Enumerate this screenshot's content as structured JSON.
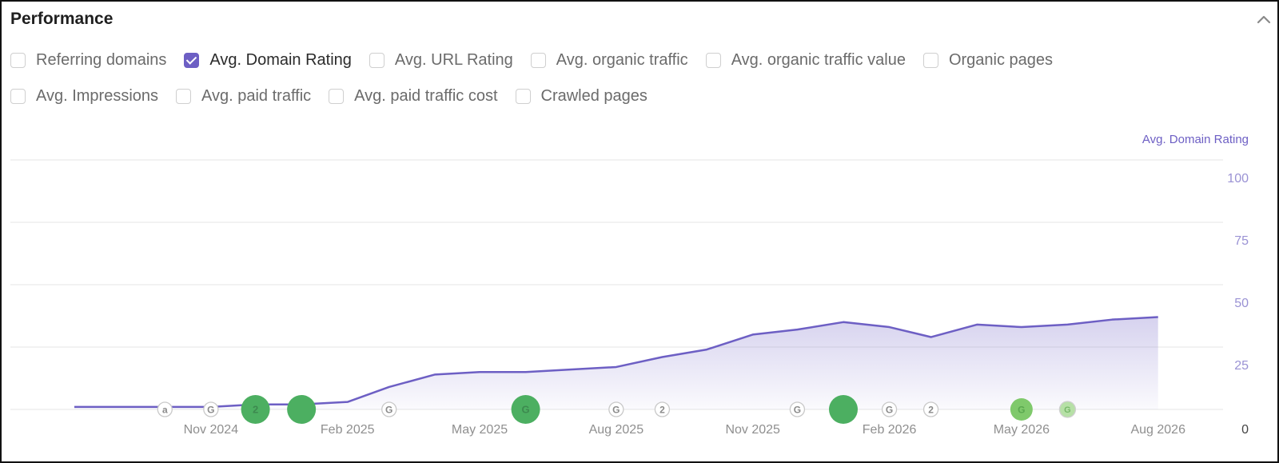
{
  "header": {
    "title": "Performance"
  },
  "metrics": [
    {
      "label": "Referring domains",
      "checked": false
    },
    {
      "label": "Avg. Domain Rating",
      "checked": true
    },
    {
      "label": "Avg. URL Rating",
      "checked": false
    },
    {
      "label": "Avg. organic traffic",
      "checked": false
    },
    {
      "label": "Avg. organic traffic value",
      "checked": false
    },
    {
      "label": "Organic pages",
      "checked": false
    },
    {
      "label": "Avg. Impressions",
      "checked": false
    },
    {
      "label": "Avg. paid traffic",
      "checked": false
    },
    {
      "label": "Avg. paid traffic cost",
      "checked": false
    },
    {
      "label": "Crawled pages",
      "checked": false
    }
  ],
  "colors": {
    "accent": "#6d5fc4",
    "grid": "#e6e6e6",
    "event_green": "#4caf61",
    "event_green_light": "#7fc96b",
    "marker_gray": "#9a9a9a"
  },
  "chart_data": {
    "type": "area",
    "ylabel": "Avg. Domain Rating",
    "ylim": [
      0,
      100
    ],
    "yticks": [
      0,
      25,
      50,
      75,
      100
    ],
    "xlim": [
      "2024-08-01",
      "2026-08-20"
    ],
    "xticks": [
      {
        "date": "2024-11-01",
        "label": "Nov 2024"
      },
      {
        "date": "2025-02-01",
        "label": "Feb 2025"
      },
      {
        "date": "2025-05-01",
        "label": "May 2025"
      },
      {
        "date": "2025-08-01",
        "label": "Aug 2025"
      },
      {
        "date": "2025-11-01",
        "label": "Nov 2025"
      },
      {
        "date": "2026-02-01",
        "label": "Feb 2026"
      },
      {
        "date": "2026-05-01",
        "label": "May 2026"
      },
      {
        "date": "2026-08-01",
        "label": "Aug 2026"
      }
    ],
    "series": [
      {
        "name": "Avg. Domain Rating",
        "points": [
          {
            "x": "2024-08-01",
            "y": 1
          },
          {
            "x": "2024-09-01",
            "y": 1
          },
          {
            "x": "2024-10-01",
            "y": 1
          },
          {
            "x": "2024-11-01",
            "y": 1
          },
          {
            "x": "2024-12-01",
            "y": 2
          },
          {
            "x": "2025-01-01",
            "y": 2
          },
          {
            "x": "2025-02-01",
            "y": 3
          },
          {
            "x": "2025-03-01",
            "y": 9
          },
          {
            "x": "2025-04-01",
            "y": 14
          },
          {
            "x": "2025-05-01",
            "y": 15
          },
          {
            "x": "2025-06-01",
            "y": 15
          },
          {
            "x": "2025-07-01",
            "y": 16
          },
          {
            "x": "2025-08-01",
            "y": 17
          },
          {
            "x": "2025-09-01",
            "y": 21
          },
          {
            "x": "2025-10-01",
            "y": 24
          },
          {
            "x": "2025-11-01",
            "y": 30
          },
          {
            "x": "2025-12-01",
            "y": 32
          },
          {
            "x": "2026-01-01",
            "y": 35
          },
          {
            "x": "2026-02-01",
            "y": 33
          },
          {
            "x": "2026-03-01",
            "y": 29
          },
          {
            "x": "2026-04-01",
            "y": 34
          },
          {
            "x": "2026-05-01",
            "y": 33
          },
          {
            "x": "2026-06-01",
            "y": 34
          },
          {
            "x": "2026-07-01",
            "y": 36
          },
          {
            "x": "2026-08-01",
            "y": 37
          }
        ]
      }
    ],
    "event_markers": [
      {
        "date": "2024-10-01",
        "kind": "letter",
        "text": "a"
      },
      {
        "date": "2024-11-01",
        "kind": "letter",
        "text": "G"
      },
      {
        "date": "2024-12-01",
        "kind": "green-circle",
        "text": "2"
      },
      {
        "date": "2025-01-01",
        "kind": "green-circle",
        "text": ""
      },
      {
        "date": "2025-03-01",
        "kind": "letter",
        "text": "G"
      },
      {
        "date": "2025-06-01",
        "kind": "green-circle",
        "text": "G"
      },
      {
        "date": "2025-08-01",
        "kind": "letter",
        "text": "G"
      },
      {
        "date": "2025-09-01",
        "kind": "letter",
        "text": "2"
      },
      {
        "date": "2025-12-01",
        "kind": "letter",
        "text": "G"
      },
      {
        "date": "2026-01-01",
        "kind": "green-circle",
        "text": ""
      },
      {
        "date": "2026-02-01",
        "kind": "letter",
        "text": "G"
      },
      {
        "date": "2026-03-01",
        "kind": "letter",
        "text": "2"
      },
      {
        "date": "2026-05-01",
        "kind": "small-green",
        "text": "G"
      },
      {
        "date": "2026-06-01",
        "kind": "small-light-green",
        "text": "G"
      }
    ]
  }
}
